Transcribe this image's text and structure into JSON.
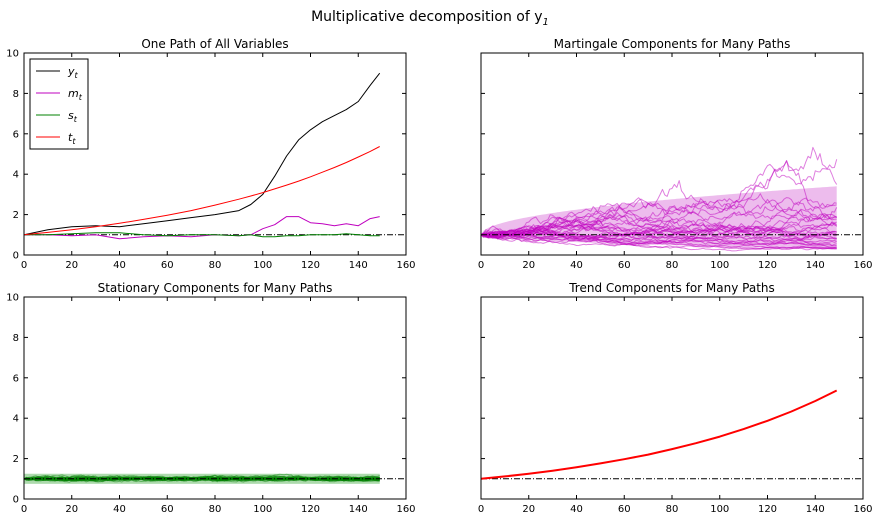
{
  "figure": {
    "suptitle": "Multiplicative decomposition of y",
    "suptitle_subscript": "1"
  },
  "colors": {
    "y": "#000000",
    "m": "#bf00bf",
    "s": "#008000",
    "t": "#ff0000",
    "m_band": "#e7a6e7",
    "s_band": "#9fd39f",
    "reference": "#000000"
  },
  "chart_data": [
    {
      "type": "line",
      "title": "One Path of All Variables",
      "xlim": [
        0,
        160
      ],
      "ylim": [
        0,
        10
      ],
      "xticks": [
        0,
        20,
        40,
        60,
        80,
        100,
        120,
        140,
        160
      ],
      "yticks": [
        0,
        2,
        4,
        6,
        8,
        10
      ],
      "reference_line": 1,
      "legend_position": "upper-left",
      "x": [
        0,
        10,
        20,
        30,
        40,
        50,
        60,
        70,
        80,
        90,
        95,
        100,
        105,
        110,
        115,
        120,
        125,
        130,
        135,
        140,
        145,
        149
      ],
      "series": [
        {
          "name": "y",
          "subscript": "t",
          "color_key": "y",
          "values": [
            1.0,
            1.25,
            1.4,
            1.45,
            1.4,
            1.55,
            1.7,
            1.85,
            2.0,
            2.2,
            2.5,
            3.0,
            3.9,
            4.9,
            5.7,
            6.2,
            6.6,
            6.9,
            7.2,
            7.6,
            8.4,
            9.0
          ]
        },
        {
          "name": "m",
          "subscript": "t",
          "color_key": "m",
          "values": [
            1.0,
            1.0,
            0.95,
            1.0,
            0.8,
            0.9,
            0.95,
            0.9,
            1.0,
            0.95,
            1.0,
            1.3,
            1.5,
            1.9,
            1.9,
            1.6,
            1.55,
            1.45,
            1.55,
            1.45,
            1.8,
            1.9
          ]
        },
        {
          "name": "s",
          "subscript": "t",
          "color_key": "s",
          "values": [
            1.0,
            1.0,
            1.05,
            1.1,
            1.1,
            1.0,
            0.95,
            1.0,
            1.0,
            0.95,
            1.0,
            0.9,
            0.9,
            0.95,
            0.95,
            1.0,
            1.0,
            1.0,
            1.05,
            1.0,
            0.95,
            0.95
          ]
        },
        {
          "name": "t",
          "subscript": "t",
          "color_key": "t",
          "growth_rate": 0.0113,
          "values": [
            1.0,
            1.12,
            1.25,
            1.4,
            1.57,
            1.76,
            1.97,
            2.2,
            2.47,
            2.76,
            2.92,
            3.09,
            3.27,
            3.46,
            3.66,
            3.87,
            4.1,
            4.33,
            4.58,
            4.85,
            5.13,
            5.37
          ]
        }
      ]
    },
    {
      "type": "line",
      "title": "Martingale Components for Many Paths",
      "xlim": [
        0,
        160
      ],
      "ylim": [
        0,
        10
      ],
      "xticks": [
        0,
        20,
        40,
        60,
        80,
        100,
        120,
        140,
        160
      ],
      "yticks": [
        0,
        2,
        4,
        6,
        8,
        10
      ],
      "reference_line": 1,
      "color_key": "m",
      "paths": 30,
      "path_end_range": [
        0.3,
        3.2
      ],
      "band": {
        "x_end": 149,
        "lower_end": 0.3,
        "upper_end": 3.4
      }
    },
    {
      "type": "line",
      "title": "Stationary Components for Many Paths",
      "xlim": [
        0,
        160
      ],
      "ylim": [
        0,
        10
      ],
      "xticks": [
        0,
        20,
        40,
        60,
        80,
        100,
        120,
        140,
        160
      ],
      "yticks": [
        0,
        2,
        4,
        6,
        8,
        10
      ],
      "reference_line": 1,
      "color_key": "s",
      "paths": 30,
      "path_end_range": [
        0.8,
        1.2
      ],
      "band": {
        "x_end": 149,
        "lower": 0.75,
        "upper": 1.25
      }
    },
    {
      "type": "line",
      "title": "Trend Components for Many Paths",
      "xlim": [
        0,
        160
      ],
      "ylim": [
        0,
        10
      ],
      "xticks": [
        0,
        20,
        40,
        60,
        80,
        100,
        120,
        140,
        160
      ],
      "yticks": [
        0,
        2,
        4,
        6,
        8,
        10
      ],
      "reference_line": 1,
      "color_key": "t",
      "x": [
        0,
        10,
        20,
        30,
        40,
        50,
        60,
        70,
        80,
        90,
        100,
        110,
        120,
        130,
        140,
        149
      ],
      "values": [
        1.0,
        1.12,
        1.25,
        1.4,
        1.57,
        1.76,
        1.97,
        2.2,
        2.47,
        2.76,
        3.09,
        3.46,
        3.87,
        4.33,
        4.85,
        5.37
      ]
    }
  ]
}
